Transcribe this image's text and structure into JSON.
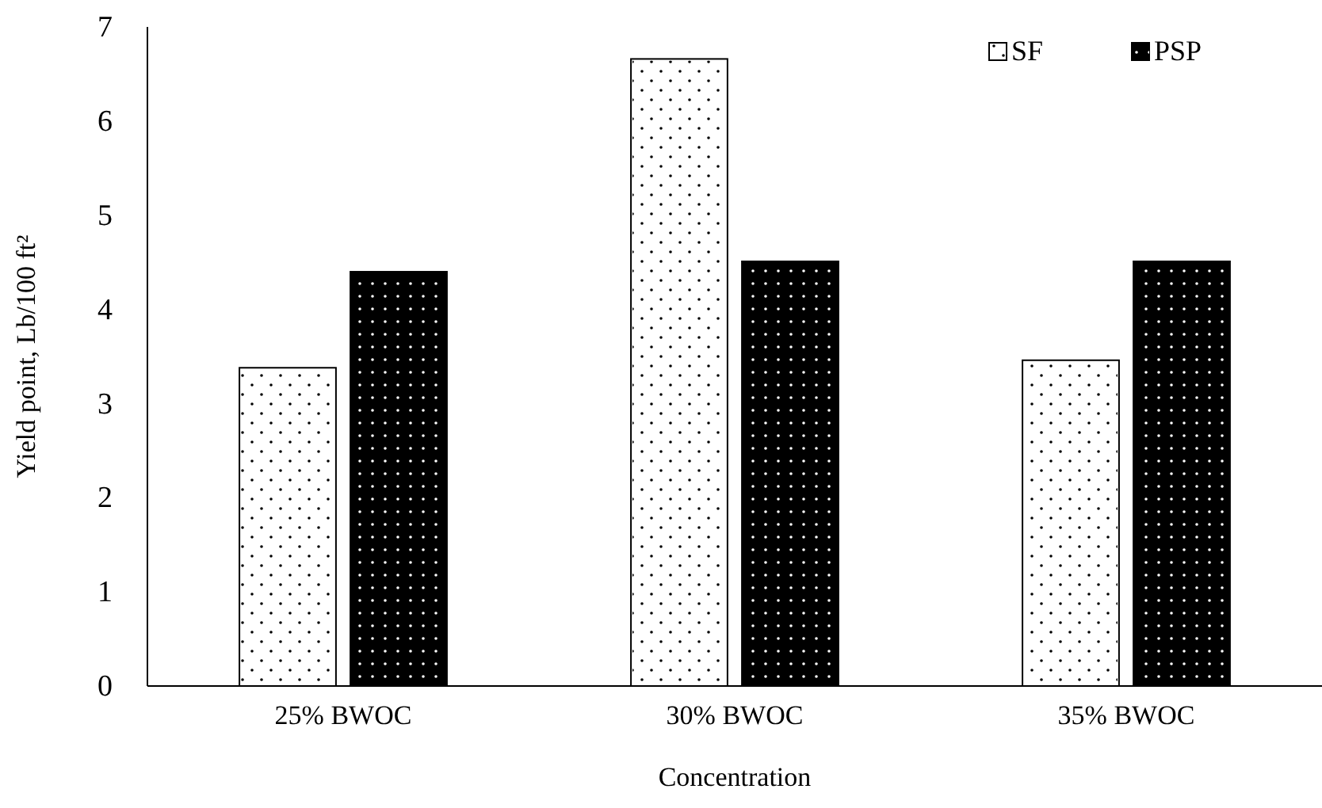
{
  "chart_data": {
    "type": "bar",
    "xlabel": "Concentration",
    "ylabel": "Yield point, Lb/100 ft²",
    "categories": [
      "25% BWOC",
      "30% BWOC",
      "35% BWOC"
    ],
    "series": [
      {
        "name": "SF",
        "color": "#ffffff",
        "values": [
          3.38,
          6.66,
          3.46
        ]
      },
      {
        "name": "PSP",
        "color": "#000000",
        "values": [
          4.4,
          4.51,
          4.51
        ]
      }
    ],
    "ylim": [
      0,
      7
    ],
    "yticks": [
      0,
      1,
      2,
      3,
      4,
      5,
      6,
      7
    ],
    "grid": false,
    "legend": "top right"
  }
}
